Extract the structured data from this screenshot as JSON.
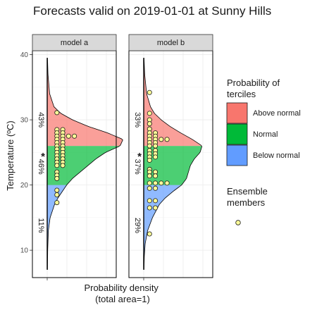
{
  "chart_data": {
    "type": "area",
    "title": "Forecasts valid on 2019-01-01 at Sunny Hills",
    "ylabel": "Temperature (ºC)",
    "xlabel": [
      "Probability density",
      "(total area=1)"
    ],
    "ylim": [
      5.8,
      40.6
    ],
    "yticks": [
      10,
      20,
      30,
      40
    ],
    "tercile_bounds": [
      20,
      26
    ],
    "colors": {
      "above": "#F8766D",
      "normal": "#00BA38",
      "below": "#619CFF",
      "member_fill": "#FFFF99",
      "strip_bg": "#D9D9D9"
    },
    "legend": {
      "terciles_title": [
        "Probability of",
        "terciles"
      ],
      "terciles_items": [
        {
          "key": "above",
          "label": "Above normal"
        },
        {
          "key": "normal",
          "label": "Normal"
        },
        {
          "key": "below",
          "label": "Below normal"
        }
      ],
      "members_title": [
        "Ensemble",
        "members"
      ]
    },
    "panels": [
      {
        "name": "model a",
        "probabilities": {
          "above": "43%",
          "normal": "46%",
          "below": "11%"
        },
        "observation": 24.5,
        "density": [
          [
            7,
            0.003
          ],
          [
            10,
            0.005
          ],
          [
            13,
            0.012
          ],
          [
            15,
            0.03
          ],
          [
            17,
            0.075
          ],
          [
            18,
            0.11
          ],
          [
            19,
            0.155
          ],
          [
            20,
            0.2
          ],
          [
            21,
            0.26
          ],
          [
            22,
            0.34
          ],
          [
            23,
            0.42
          ],
          [
            24,
            0.5
          ],
          [
            25,
            0.6
          ],
          [
            26,
            0.75
          ],
          [
            27,
            0.78
          ],
          [
            28,
            0.62
          ],
          [
            29,
            0.42
          ],
          [
            30,
            0.26
          ],
          [
            31,
            0.14
          ],
          [
            32,
            0.07
          ],
          [
            34,
            0.025
          ],
          [
            37,
            0.008
          ],
          [
            39.5,
            0.003
          ]
        ],
        "members": [
          [
            0.1,
            31.1
          ],
          [
            0.1,
            28.5
          ],
          [
            0.16,
            28.5
          ],
          [
            0.1,
            28.0
          ],
          [
            0.16,
            28.0
          ],
          [
            0.1,
            27.5
          ],
          [
            0.16,
            27.5
          ],
          [
            0.22,
            27.5
          ],
          [
            0.28,
            27.5
          ],
          [
            0.1,
            27.0
          ],
          [
            0.16,
            27.0
          ],
          [
            0.1,
            26.5
          ],
          [
            0.16,
            26.5
          ],
          [
            0.1,
            26.0
          ],
          [
            0.16,
            26.0
          ],
          [
            0.1,
            25.5
          ],
          [
            0.16,
            25.5
          ],
          [
            0.1,
            25.0
          ],
          [
            0.16,
            25.0
          ],
          [
            0.1,
            24.5
          ],
          [
            0.16,
            24.5
          ],
          [
            0.1,
            24.0
          ],
          [
            0.16,
            24.0
          ],
          [
            0.1,
            23.5
          ],
          [
            0.16,
            23.5
          ],
          [
            0.1,
            23.0
          ],
          [
            0.16,
            23.0
          ],
          [
            0.1,
            22.0
          ],
          [
            0.1,
            21.5
          ],
          [
            0.1,
            21.0
          ],
          [
            0.1,
            19.2
          ],
          [
            0.1,
            18.5
          ],
          [
            0.1,
            17.3
          ]
        ]
      },
      {
        "name": "model b",
        "probabilities": {
          "above": "33%",
          "normal": "37%",
          "below": "29%"
        },
        "observation": 24.5,
        "density": [
          [
            7,
            0.003
          ],
          [
            9,
            0.006
          ],
          [
            11,
            0.015
          ],
          [
            13,
            0.04
          ],
          [
            15,
            0.09
          ],
          [
            17,
            0.16
          ],
          [
            18,
            0.22
          ],
          [
            19,
            0.3
          ],
          [
            20,
            0.39
          ],
          [
            21,
            0.44
          ],
          [
            22,
            0.46
          ],
          [
            23,
            0.48
          ],
          [
            24,
            0.52
          ],
          [
            25,
            0.58
          ],
          [
            26,
            0.6
          ],
          [
            27,
            0.5
          ],
          [
            28,
            0.38
          ],
          [
            29,
            0.27
          ],
          [
            30,
            0.18
          ],
          [
            31,
            0.11
          ],
          [
            32,
            0.07
          ],
          [
            34,
            0.03
          ],
          [
            37,
            0.01
          ],
          [
            39.5,
            0.003
          ]
        ],
        "members": [
          [
            0.06,
            34.2
          ],
          [
            0.06,
            31.0
          ],
          [
            0.06,
            30.0
          ],
          [
            0.06,
            29.4
          ],
          [
            0.06,
            28.6
          ],
          [
            0.06,
            28.0
          ],
          [
            0.12,
            28.0
          ],
          [
            0.06,
            27.5
          ],
          [
            0.12,
            27.5
          ],
          [
            0.06,
            27.0
          ],
          [
            0.12,
            27.0
          ],
          [
            0.18,
            27.0
          ],
          [
            0.24,
            27.0
          ],
          [
            0.06,
            26.5
          ],
          [
            0.12,
            26.5
          ],
          [
            0.06,
            26.0
          ],
          [
            0.12,
            26.0
          ],
          [
            0.06,
            25.3
          ],
          [
            0.12,
            25.3
          ],
          [
            0.06,
            24.8
          ],
          [
            0.12,
            24.8
          ],
          [
            0.06,
            24.3
          ],
          [
            0.12,
            24.3
          ],
          [
            0.06,
            23.8
          ],
          [
            0.06,
            22.4
          ],
          [
            0.06,
            22.0
          ],
          [
            0.12,
            22.0
          ],
          [
            0.06,
            21.4
          ],
          [
            0.12,
            21.4
          ],
          [
            0.06,
            20.3
          ],
          [
            0.12,
            20.3
          ],
          [
            0.18,
            20.3
          ],
          [
            0.24,
            20.3
          ],
          [
            0.06,
            19.5
          ],
          [
            0.12,
            19.5
          ],
          [
            0.06,
            17.6
          ],
          [
            0.12,
            17.6
          ],
          [
            0.06,
            16.5
          ],
          [
            0.12,
            16.5
          ],
          [
            0.06,
            12.5
          ]
        ]
      }
    ]
  }
}
